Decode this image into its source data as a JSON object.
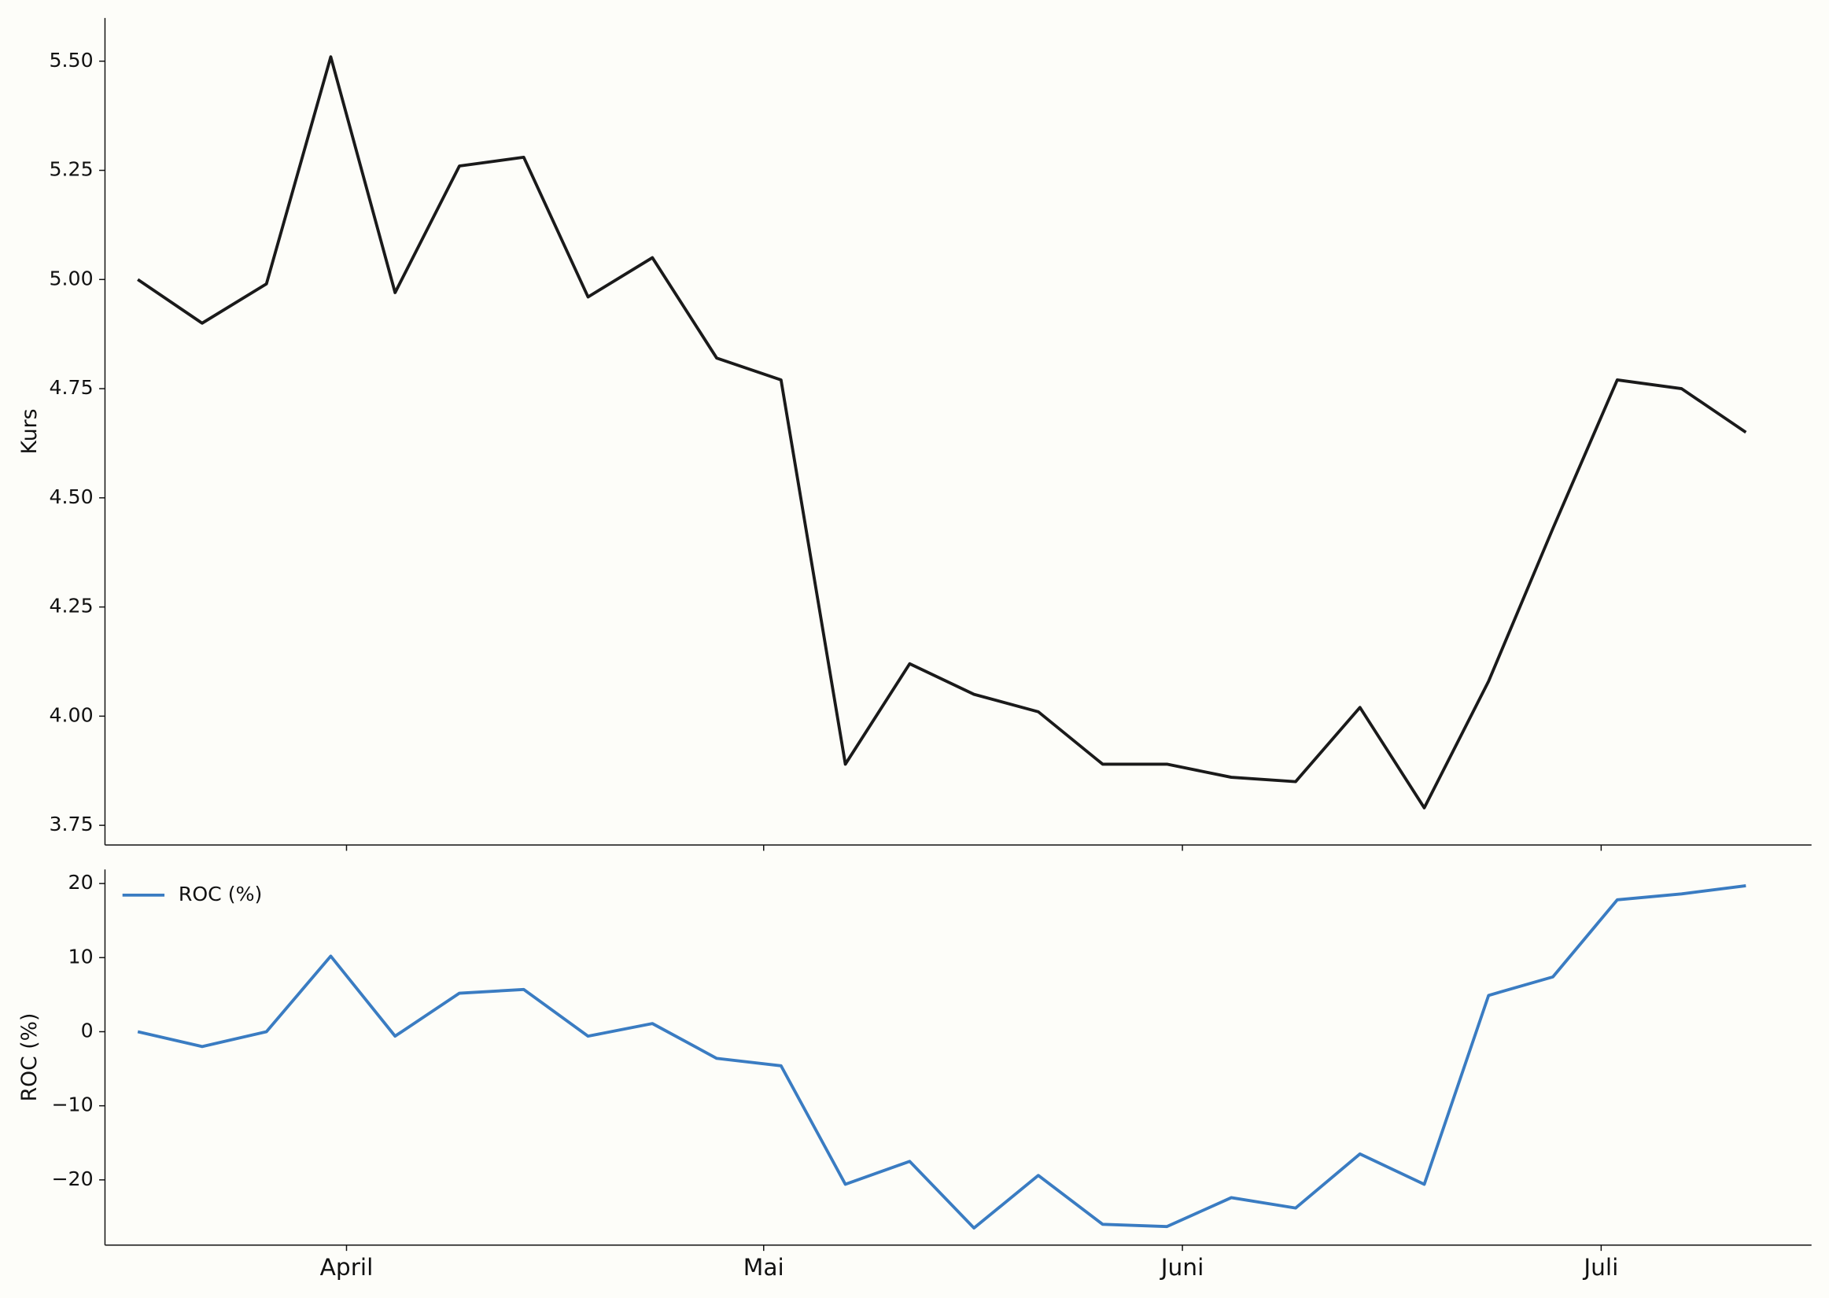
{
  "chart_data": [
    {
      "type": "line",
      "ylabel": "Kurs",
      "x": [
        0,
        1,
        2,
        3,
        4,
        5,
        6,
        7,
        8,
        9,
        10,
        11,
        12,
        13,
        14,
        15,
        16,
        17,
        18,
        19,
        20,
        21,
        22,
        23,
        24,
        25
      ],
      "xlim": [
        -0.51,
        26.02
      ],
      "ylim": [
        3.705,
        5.599
      ],
      "yticks": [
        {
          "value": 3.75,
          "label": "3.75"
        },
        {
          "value": 4.0,
          "label": "4.00"
        },
        {
          "value": 4.25,
          "label": "4.25"
        },
        {
          "value": 4.5,
          "label": "4.50"
        },
        {
          "value": 4.75,
          "label": "4.75"
        },
        {
          "value": 5.0,
          "label": "5.00"
        },
        {
          "value": 5.25,
          "label": "5.25"
        },
        {
          "value": 5.5,
          "label": "5.50"
        }
      ],
      "series": [
        {
          "color": "#1a1a1a",
          "values": [
            5.0,
            4.9,
            4.99,
            5.51,
            4.97,
            5.26,
            5.28,
            4.96,
            5.05,
            4.82,
            4.77,
            3.89,
            4.12,
            4.05,
            4.01,
            3.89,
            3.89,
            3.86,
            3.85,
            4.02,
            3.79,
            4.08,
            4.43,
            4.77,
            4.75,
            4.65
          ]
        }
      ]
    },
    {
      "type": "line",
      "ylabel": "ROC (%)",
      "legend": "upper left",
      "x": [
        0,
        1,
        2,
        3,
        4,
        5,
        6,
        7,
        8,
        9,
        10,
        11,
        12,
        13,
        14,
        15,
        16,
        17,
        18,
        19,
        20,
        21,
        22,
        23,
        24,
        25
      ],
      "xlim": [
        -0.51,
        26.02
      ],
      "xticks": [
        {
          "value": 3.245,
          "label": "April"
        },
        {
          "value": 9.73,
          "label": "Mai"
        },
        {
          "value": 16.24,
          "label": "Juni"
        },
        {
          "value": 22.75,
          "label": "Juli"
        }
      ],
      "ylim": [
        -28.8,
        21.9
      ],
      "yticks": [
        {
          "value": -20,
          "label": "−20"
        },
        {
          "value": -10,
          "label": "−10"
        },
        0,
        10,
        20
      ],
      "series": [
        {
          "name": "ROC (%)",
          "color": "#3a7cc2",
          "values": [
            0,
            -2.0,
            0,
            10.2,
            -0.6,
            5.2,
            5.7,
            -0.6,
            1.1,
            -3.6,
            -4.6,
            -20.6,
            -17.5,
            -26.5,
            -19.4,
            -26.0,
            -26.3,
            -22.4,
            -23.8,
            -16.5,
            -20.6,
            4.9,
            7.4,
            17.8,
            18.6,
            19.7
          ]
        }
      ]
    }
  ]
}
